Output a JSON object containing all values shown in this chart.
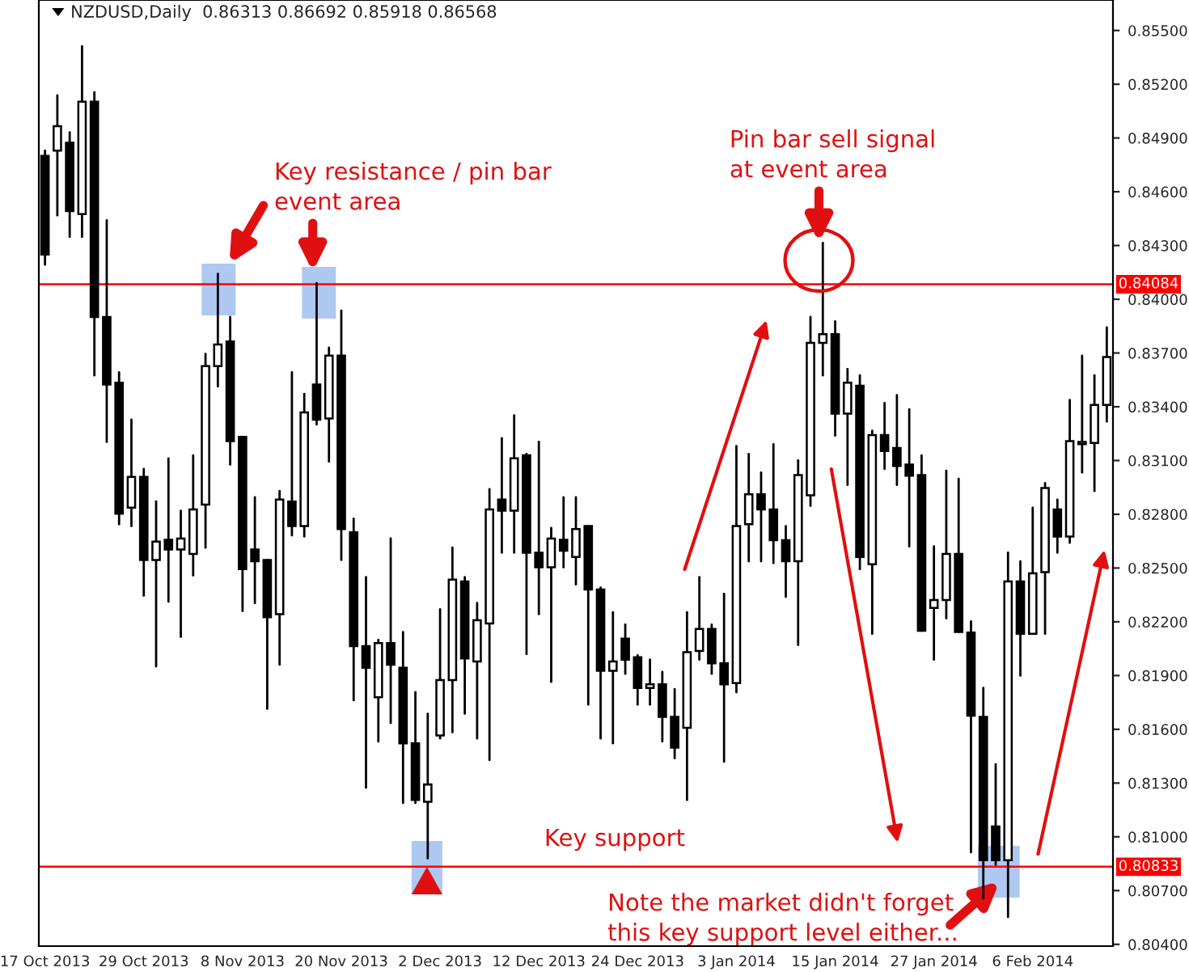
{
  "chart_data": {
    "type": "candlestick",
    "title": "NZDUSD,Daily  0.86313 0.86692 0.85918 0.86568",
    "categories": [
      "17 Oct 2013",
      null,
      null,
      null,
      null,
      null,
      null,
      null,
      "29 Oct 2013",
      null,
      null,
      null,
      null,
      null,
      null,
      null,
      "8 Nov 2013",
      null,
      null,
      null,
      null,
      null,
      null,
      null,
      "20 Nov 2013",
      null,
      null,
      null,
      null,
      null,
      null,
      null,
      "2 Dec 2013",
      null,
      null,
      null,
      null,
      null,
      null,
      null,
      "12 Dec 2013",
      null,
      null,
      null,
      null,
      null,
      null,
      null,
      "24 Dec 2013",
      null,
      null,
      null,
      null,
      null,
      null,
      null,
      "3 Jan 2014",
      null,
      null,
      null,
      null,
      null,
      null,
      null,
      "15 Jan 2014",
      null,
      null,
      null,
      null,
      null,
      null,
      null,
      "27 Jan 2014",
      null,
      null,
      null,
      null,
      null,
      null,
      null,
      "6 Feb 2014",
      null,
      null,
      null,
      null,
      null,
      null
    ],
    "ohlc": [
      [
        0.848,
        0.84829,
        0.84193,
        0.8425
      ],
      [
        0.84829,
        0.85138,
        0.84468,
        0.84966
      ],
      [
        0.84873,
        0.84932,
        0.84348,
        0.84492
      ],
      [
        0.84475,
        0.85412,
        0.84348,
        0.85103
      ],
      [
        0.85103,
        0.85155,
        0.83575,
        0.83901
      ],
      [
        0.83901,
        0.84441,
        0.83204,
        0.83524
      ],
      [
        0.83534,
        0.83592,
        0.82744,
        0.82803
      ],
      [
        0.82837,
        0.83328,
        0.82734,
        0.83009
      ],
      [
        0.83009,
        0.83053,
        0.82346,
        0.82545
      ],
      [
        0.82545,
        0.82871,
        0.81951,
        0.82648
      ],
      [
        0.82658,
        0.83112,
        0.82312,
        0.82603
      ],
      [
        0.82603,
        0.8282,
        0.82116,
        0.82665
      ],
      [
        0.82579,
        0.83129,
        0.82459,
        0.82827
      ],
      [
        0.82854,
        0.83695,
        0.82614,
        0.83627
      ],
      [
        0.83627,
        0.84142,
        0.83513,
        0.83747
      ],
      [
        0.83764,
        0.83901,
        0.83077,
        0.83208
      ],
      [
        0.83232,
        0.83232,
        0.8226,
        0.82494
      ],
      [
        0.82603,
        0.82895,
        0.82305,
        0.82538
      ],
      [
        0.82545,
        0.82545,
        0.81714,
        0.82226
      ],
      [
        0.82243,
        0.8293,
        0.81961,
        0.82882
      ],
      [
        0.82871,
        0.83592,
        0.82682,
        0.82734
      ],
      [
        0.82734,
        0.83472,
        0.82676,
        0.83369
      ],
      [
        0.83524,
        0.8409,
        0.83301,
        0.83328
      ],
      [
        0.83335,
        0.8373,
        0.83094,
        0.83685
      ],
      [
        0.83685,
        0.83936,
        0.82545,
        0.82717
      ],
      [
        0.827,
        0.82775,
        0.81762,
        0.82064
      ],
      [
        0.82064,
        0.82449,
        0.81274,
        0.81944
      ],
      [
        0.81779,
        0.82099,
        0.81532,
        0.82081
      ],
      [
        0.82081,
        0.82665,
        0.81635,
        0.81961
      ],
      [
        0.81944,
        0.82143,
        0.81189,
        0.81522
      ],
      [
        0.81522,
        0.81807,
        0.81189,
        0.81206
      ],
      [
        0.81195,
        0.81687,
        0.8088,
        0.81292
      ],
      [
        0.81566,
        0.8227,
        0.81549,
        0.81875
      ],
      [
        0.81875,
        0.82614,
        0.81584,
        0.82435
      ],
      [
        0.82425,
        0.82449,
        0.81687,
        0.81996
      ],
      [
        0.81978,
        0.82305,
        0.81549,
        0.82209
      ],
      [
        0.82191,
        0.8294,
        0.81429,
        0.82827
      ],
      [
        0.82882,
        0.83225,
        0.82586,
        0.8282
      ],
      [
        0.8282,
        0.83352,
        0.82586,
        0.83112
      ],
      [
        0.83129,
        0.83136,
        0.8202,
        0.82586
      ],
      [
        0.82586,
        0.83204,
        0.82243,
        0.82504
      ],
      [
        0.82504,
        0.82724,
        0.81865,
        0.82665
      ],
      [
        0.82658,
        0.82895,
        0.82504,
        0.82597
      ],
      [
        0.82562,
        0.82895,
        0.82408,
        0.82717
      ],
      [
        0.82734,
        0.82734,
        0.81738,
        0.8238
      ],
      [
        0.8238,
        0.82391,
        0.81549,
        0.81927
      ],
      [
        0.81927,
        0.82253,
        0.81522,
        0.81978
      ],
      [
        0.82106,
        0.82184,
        0.8191,
        0.81989
      ],
      [
        0.82002,
        0.82013,
        0.81738,
        0.81831
      ],
      [
        0.81831,
        0.81989,
        0.81738,
        0.81851
      ],
      [
        0.81851,
        0.8192,
        0.81532,
        0.81669
      ],
      [
        0.81669,
        0.81824,
        0.81439,
        0.81498
      ],
      [
        0.81608,
        0.82253,
        0.81206,
        0.8203
      ],
      [
        0.82037,
        0.82449,
        0.81989,
        0.8216
      ],
      [
        0.8216,
        0.82184,
        0.8191,
        0.81968
      ],
      [
        0.81968,
        0.82356,
        0.81419,
        0.81851
      ],
      [
        0.81858,
        0.8318,
        0.81807,
        0.82734
      ],
      [
        0.82744,
        0.83136,
        0.82538,
        0.82912
      ],
      [
        0.82912,
        0.83033,
        0.82538,
        0.82827
      ],
      [
        0.82827,
        0.83191,
        0.82528,
        0.82655
      ],
      [
        0.82655,
        0.82734,
        0.82339,
        0.82538
      ],
      [
        0.82538,
        0.83101,
        0.82071,
        0.83019
      ],
      [
        0.82906,
        0.83901,
        0.82847,
        0.83757
      ],
      [
        0.83757,
        0.84314,
        0.83575,
        0.83805
      ],
      [
        0.83805,
        0.83877,
        0.83239,
        0.83362
      ],
      [
        0.83362,
        0.8361,
        0.82964,
        0.83534
      ],
      [
        0.83517,
        0.83575,
        0.82494,
        0.82562
      ],
      [
        0.82521,
        0.83266,
        0.82133,
        0.83242
      ],
      [
        0.83242,
        0.83421,
        0.83053,
        0.83153
      ],
      [
        0.8317,
        0.83465,
        0.82964,
        0.8307
      ],
      [
        0.83077,
        0.83386,
        0.82621,
        0.83015
      ],
      [
        0.83019,
        0.83129,
        0.8215,
        0.8215
      ],
      [
        0.82277,
        0.82621,
        0.81989,
        0.82322
      ],
      [
        0.82322,
        0.83043,
        0.82219,
        0.82579
      ],
      [
        0.82579,
        0.82998,
        0.82143,
        0.82143
      ],
      [
        0.8214,
        0.82202,
        0.80914,
        0.81676
      ],
      [
        0.81669,
        0.81831,
        0.80656,
        0.80869
      ],
      [
        0.81058,
        0.81405,
        0.80845,
        0.80869
      ],
      [
        0.80869,
        0.82586,
        0.80553,
        0.82425
      ],
      [
        0.82425,
        0.82538,
        0.819,
        0.82133
      ],
      [
        0.82133,
        0.82837,
        0.82133,
        0.8247
      ],
      [
        0.82477,
        0.82974,
        0.82133,
        0.82947
      ],
      [
        0.82827,
        0.82882,
        0.82586,
        0.82676
      ],
      [
        0.82676,
        0.83438,
        0.82641,
        0.83208
      ],
      [
        0.83191,
        0.83685,
        0.83033,
        0.83204
      ],
      [
        0.83198,
        0.83575,
        0.8293,
        0.8341
      ],
      [
        0.8341,
        0.83843,
        0.83318,
        0.83678
      ]
    ],
    "ylim": [
      0.8039,
      0.8567
    ],
    "yticks": [
      {
        "value": 0.855,
        "label": "0.85500"
      },
      {
        "value": 0.852,
        "label": "0.85200"
      },
      {
        "value": 0.849,
        "label": "0.84900"
      },
      {
        "value": 0.846,
        "label": "0.84600"
      },
      {
        "value": 0.843,
        "label": "0.84300"
      },
      {
        "value": 0.84,
        "label": "0.84000"
      },
      {
        "value": 0.837,
        "label": "0.83700"
      },
      {
        "value": 0.834,
        "label": "0.83400"
      },
      {
        "value": 0.831,
        "label": "0.83100"
      },
      {
        "value": 0.828,
        "label": "0.82800"
      },
      {
        "value": 0.825,
        "label": "0.82500"
      },
      {
        "value": 0.822,
        "label": "0.82200"
      },
      {
        "value": 0.819,
        "label": "0.81900"
      },
      {
        "value": 0.816,
        "label": "0.81600"
      },
      {
        "value": 0.813,
        "label": "0.81300"
      },
      {
        "value": 0.81,
        "label": "0.81000"
      },
      {
        "value": 0.807,
        "label": "0.80700"
      },
      {
        "value": 0.804,
        "label": "0.80400"
      }
    ],
    "ref_lines": [
      {
        "axis": "y",
        "value": 0.84084,
        "label": "0.84084",
        "color": "#ff0000"
      },
      {
        "axis": "y",
        "value": 0.80833,
        "label": "0.80833",
        "color": "#ff0000"
      }
    ],
    "annotations": [
      "Key resistance / pin bar\nevent area",
      "Pin bar sell signal\nat event area",
      "Key support",
      "Note the market didn't forget\nthis key support level either..."
    ],
    "grid": false,
    "legend": false
  }
}
